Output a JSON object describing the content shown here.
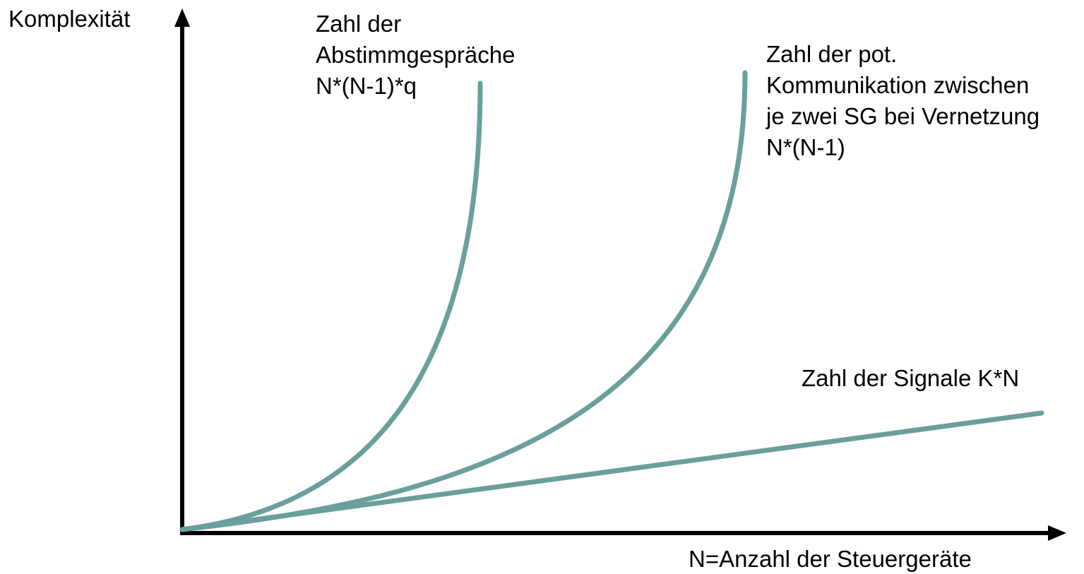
{
  "axes": {
    "y_label": "Komplexität",
    "x_label": "N=Anzahl der Steuergeräte"
  },
  "curves": [
    {
      "label_lines": [
        "Zahl der",
        "Abstimmgespräche",
        "N*(N-1)*q"
      ]
    },
    {
      "label_lines": [
        "Zahl der pot.",
        "Kommunikation zwischen",
        "je zwei SG bei Vernetzung",
        "N*(N-1)"
      ]
    },
    {
      "label_lines": [
        "Zahl der Signale K*N"
      ]
    }
  ]
}
